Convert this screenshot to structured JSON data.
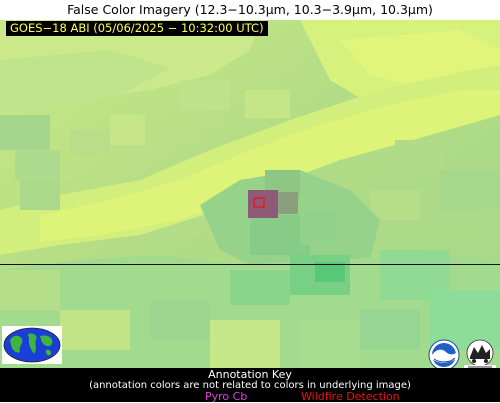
{
  "title": "False Color Imagery (12.3−10.3µm, 10.3−3.9µm, 10.3µm)",
  "subtitle": "GOES−18 ABI (05/06/2025 − 10:32:00 UTC)",
  "annotation_key": {
    "title": "Annotation Key",
    "note": "(annotation colors are not related to colors in underlying image)",
    "items": [
      {
        "label": "Pyro Cb",
        "color": "#e040e0"
      },
      {
        "label": "Wildfire Detection",
        "color": "#ee1111"
      }
    ]
  },
  "colors": {
    "background_green": "#b6dc84",
    "yellow_green": "#d8f27a",
    "mint_green": "#8fdc92",
    "hotspot": "#8e5a78",
    "wildfire_marker": "#ee1111",
    "subtitle_text": "#ffff55"
  },
  "icons": [
    "globe-logo",
    "noaa-logo",
    "cimss-logo"
  ]
}
